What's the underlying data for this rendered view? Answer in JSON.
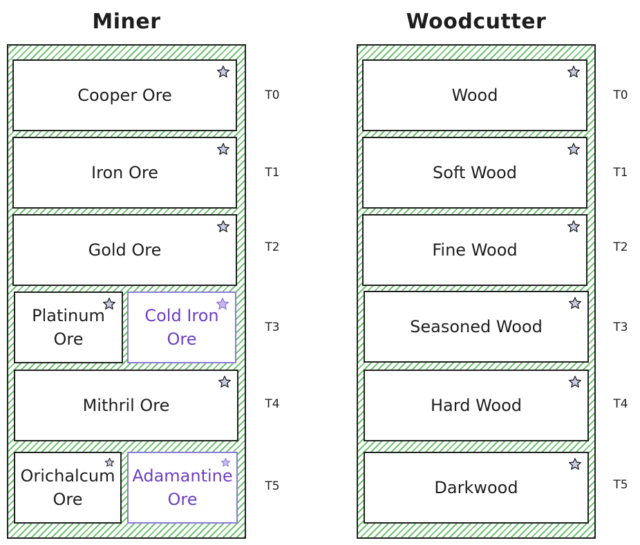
{
  "miner": {
    "title": "Miner",
    "cards": {
      "t0": "Cooper Ore",
      "t1": "Iron Ore",
      "t2": "Gold Ore",
      "t3a": "Platinum Ore",
      "t3b": "Cold Iron Ore",
      "t4": "Mithril Ore",
      "t5a": "Orichalcum Ore",
      "t5b": "Adamantine Ore"
    },
    "tiers": [
      "T0",
      "T1",
      "T2",
      "T3",
      "T4",
      "T5"
    ]
  },
  "woodcutter": {
    "title": "Woodcutter",
    "cards": {
      "t0": "Wood",
      "t1": "Soft Wood",
      "t2": "Fine Wood",
      "t3": "Seasoned Wood",
      "t4": "Hard Wood",
      "t5": "Darkwood"
    },
    "tiers": [
      "T0",
      "T1",
      "T2",
      "T3",
      "T4",
      "T5"
    ]
  },
  "colors": {
    "hatch": "#6cc26f",
    "stroke": "#1e1e1e",
    "highlight_text": "#6c3fc2",
    "highlight_border": "#8a79d6",
    "star_fill": "#c7cde6",
    "highlight_star_fill": "#c9b8f0"
  },
  "icons": {
    "favorite": "star-icon"
  }
}
